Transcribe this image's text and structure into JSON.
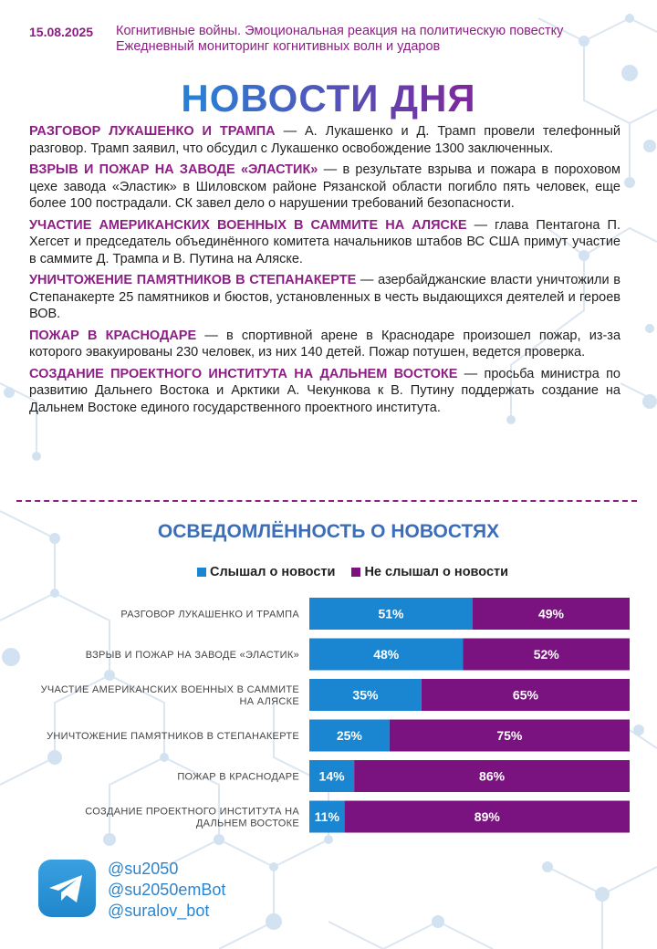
{
  "header": {
    "date": "15.08.2025",
    "subtitle_line1": "Когнитивные войны. Эмоциональная реакция на политическую повестку",
    "subtitle_line2": "Ежедневный мониторинг когнитивных волн и ударов"
  },
  "title": "НОВОСТИ ДНЯ",
  "news": [
    {
      "head": "РАЗГОВОР ЛУКАШЕНКО И ТРАМПА",
      "text": " — А. Лукашенко и Д. Трамп провели телефонный разговор. Трамп заявил, что обсудил с Лукашенко освобождение 1300 заключенных."
    },
    {
      "head": "ВЗРЫВ И ПОЖАР НА ЗАВОДЕ «ЭЛАСТИК»",
      "text": " — в результате взрыва и пожара в пороховом цехе завода «Эластик» в Шиловском районе Рязанской области погибло пять человек, еще более 100 пострадали. СК завел дело о нарушении требований безопасности."
    },
    {
      "head": "УЧАСТИЕ АМЕРИКАНСКИХ ВОЕННЫХ В САММИТЕ НА АЛЯСКЕ",
      "text": " — глава Пентагона П. Хегсет и председатель объединённого комитета начальников штабов ВС США примут участие в саммите Д. Трампа и В. Путина на Аляске."
    },
    {
      "head": "УНИЧТОЖЕНИЕ ПАМЯТНИКОВ В СТЕПАНАКЕРТЕ",
      "text": " — азербайджанские власти уничтожили в Степанакерте 25 памятников и бюстов, установленных в честь выдающихся деятелей и героев ВОВ."
    },
    {
      "head": "ПОЖАР В КРАСНОДАРЕ",
      "text": " — в спортивной арене в Краснодаре произошел пожар, из-за которого эвакуированы 230 человек, из них 140 детей. Пожар потушен, ведется проверка."
    },
    {
      "head": "СОЗДАНИЕ ПРОЕКТНОГО ИНСТИТУТА НА ДАЛЬНЕМ ВОСТОКЕ",
      "text": " — просьба министра по развитию Дальнего Востока и Арктики А. Чекункова к В. Путину поддержать создание на Дальнем Востоке единого государственного проектного института."
    }
  ],
  "colors": {
    "heard": "#1a86d2",
    "not_heard": "#7a1380"
  },
  "chart_data": {
    "type": "bar",
    "orientation": "horizontal",
    "stacked": true,
    "title": "ОСВЕДОМЛЁННОСТЬ О НОВОСТЯХ",
    "legend_position": "top",
    "categories": [
      [
        "РАЗГОВОР ЛУКАШЕНКО И ТРАМПА"
      ],
      [
        "ВЗРЫВ И ПОЖАР НА ЗАВОДЕ «ЭЛАСТИК»"
      ],
      [
        "УЧАСТИЕ АМЕРИКАНСКИХ ВОЕННЫХ В САММИТЕ",
        "НА АЛЯСКЕ"
      ],
      [
        "УНИЧТОЖЕНИЕ ПАМЯТНИКОВ В СТЕПАНАКЕРТЕ"
      ],
      [
        "ПОЖАР В КРАСНОДАРЕ"
      ],
      [
        "СОЗДАНИЕ ПРОЕКТНОГО ИНСТИТУТА НА",
        "ДАЛЬНЕМ ВОСТОКЕ"
      ]
    ],
    "series": [
      {
        "name": "Слышал о новости",
        "values": [
          51,
          48,
          35,
          25,
          14,
          11
        ]
      },
      {
        "name": "Не слышал о новости",
        "values": [
          49,
          52,
          65,
          75,
          86,
          89
        ]
      }
    ],
    "value_suffix": "%",
    "xlim": [
      0,
      100
    ]
  },
  "footer": {
    "icon": "telegram-icon",
    "handles": [
      "@su2050",
      "@su2050emBot",
      "@suralov_bot"
    ]
  }
}
